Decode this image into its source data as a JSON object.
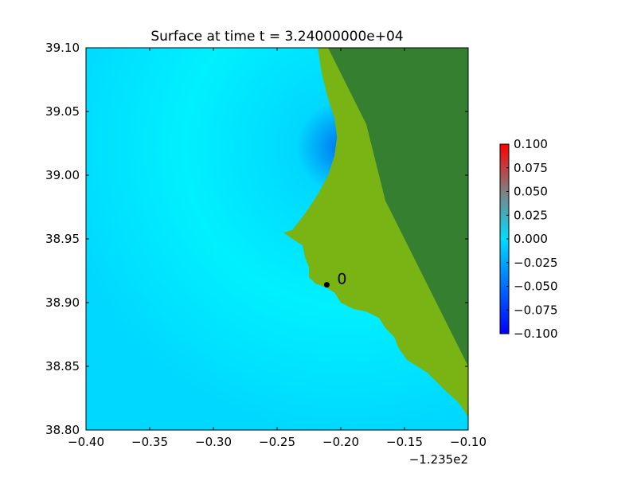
{
  "chart_data": {
    "type": "heatmap",
    "title": "Surface at time t = 3.24000000e+04",
    "xlabel": "",
    "ylabel": "",
    "xlim": [
      -0.4,
      -0.1
    ],
    "ylim": [
      38.8,
      39.1
    ],
    "x_ticks": [
      -0.4,
      -0.35,
      -0.3,
      -0.25,
      -0.2,
      -0.15,
      -0.1
    ],
    "x_tick_labels": [
      "−0.40",
      "−0.35",
      "−0.30",
      "−0.25",
      "−0.20",
      "−0.15",
      "−0.10"
    ],
    "x_offset_label": "−1.235e2",
    "y_ticks": [
      38.8,
      38.85,
      38.9,
      38.95,
      39.0,
      39.05,
      39.1
    ],
    "y_tick_labels": [
      "38.80",
      "38.85",
      "38.90",
      "38.95",
      "39.00",
      "39.05",
      "39.10"
    ],
    "grid": false,
    "colorbar": {
      "range": [
        -0.1,
        0.1
      ],
      "ticks": [
        -0.1,
        -0.075,
        -0.05,
        -0.025,
        0.0,
        0.025,
        0.05,
        0.075,
        0.1
      ],
      "tick_labels": [
        "−0.100",
        "−0.075",
        "−0.050",
        "−0.025",
        "0.000",
        "0.025",
        "0.050",
        "0.075",
        "0.100"
      ],
      "colors": [
        "#0000ff",
        "#00dcff",
        "#808080",
        "#ff0000"
      ]
    },
    "gauges": [
      {
        "label": "0",
        "x": -0.211,
        "y": 38.914
      }
    ],
    "coastline": [
      [
        -0.218,
        39.1
      ],
      [
        -0.215,
        39.08
      ],
      [
        -0.21,
        39.06
      ],
      [
        -0.205,
        39.045
      ],
      [
        -0.203,
        39.03
      ],
      [
        -0.205,
        39.015
      ],
      [
        -0.21,
        39.0
      ],
      [
        -0.218,
        38.985
      ],
      [
        -0.228,
        38.97
      ],
      [
        -0.238,
        38.957
      ],
      [
        -0.245,
        38.955
      ],
      [
        -0.238,
        38.95
      ],
      [
        -0.23,
        38.945
      ],
      [
        -0.228,
        38.935
      ],
      [
        -0.225,
        38.928
      ],
      [
        -0.225,
        38.92
      ],
      [
        -0.22,
        38.915
      ],
      [
        -0.212,
        38.912
      ],
      [
        -0.205,
        38.908
      ],
      [
        -0.2,
        38.9
      ],
      [
        -0.19,
        38.895
      ],
      [
        -0.18,
        38.893
      ],
      [
        -0.17,
        38.888
      ],
      [
        -0.165,
        38.88
      ],
      [
        -0.158,
        38.873
      ],
      [
        -0.155,
        38.865
      ],
      [
        -0.148,
        38.855
      ],
      [
        -0.14,
        38.85
      ],
      [
        -0.132,
        38.845
      ],
      [
        -0.125,
        38.838
      ],
      [
        -0.117,
        38.83
      ],
      [
        -0.108,
        38.822
      ],
      [
        -0.103,
        38.815
      ],
      [
        -0.1,
        38.81
      ]
    ],
    "ridge": [
      [
        -0.21,
        39.1
      ],
      [
        -0.2,
        39.08
      ],
      [
        -0.19,
        39.06
      ],
      [
        -0.18,
        39.04
      ],
      [
        -0.175,
        39.02
      ],
      [
        -0.17,
        39.0
      ],
      [
        -0.165,
        38.98
      ],
      [
        -0.155,
        38.96
      ],
      [
        -0.145,
        38.94
      ],
      [
        -0.135,
        38.92
      ],
      [
        -0.125,
        38.9
      ],
      [
        -0.115,
        38.88
      ],
      [
        -0.105,
        38.86
      ],
      [
        -0.1,
        38.85
      ]
    ],
    "colors": {
      "sea_light": "#00f0ff",
      "sea_mid": "#00d8ff",
      "depression": "#0072f0",
      "lowland": "#7ab414",
      "highland": "#358030",
      "gauge": "#000000"
    }
  }
}
